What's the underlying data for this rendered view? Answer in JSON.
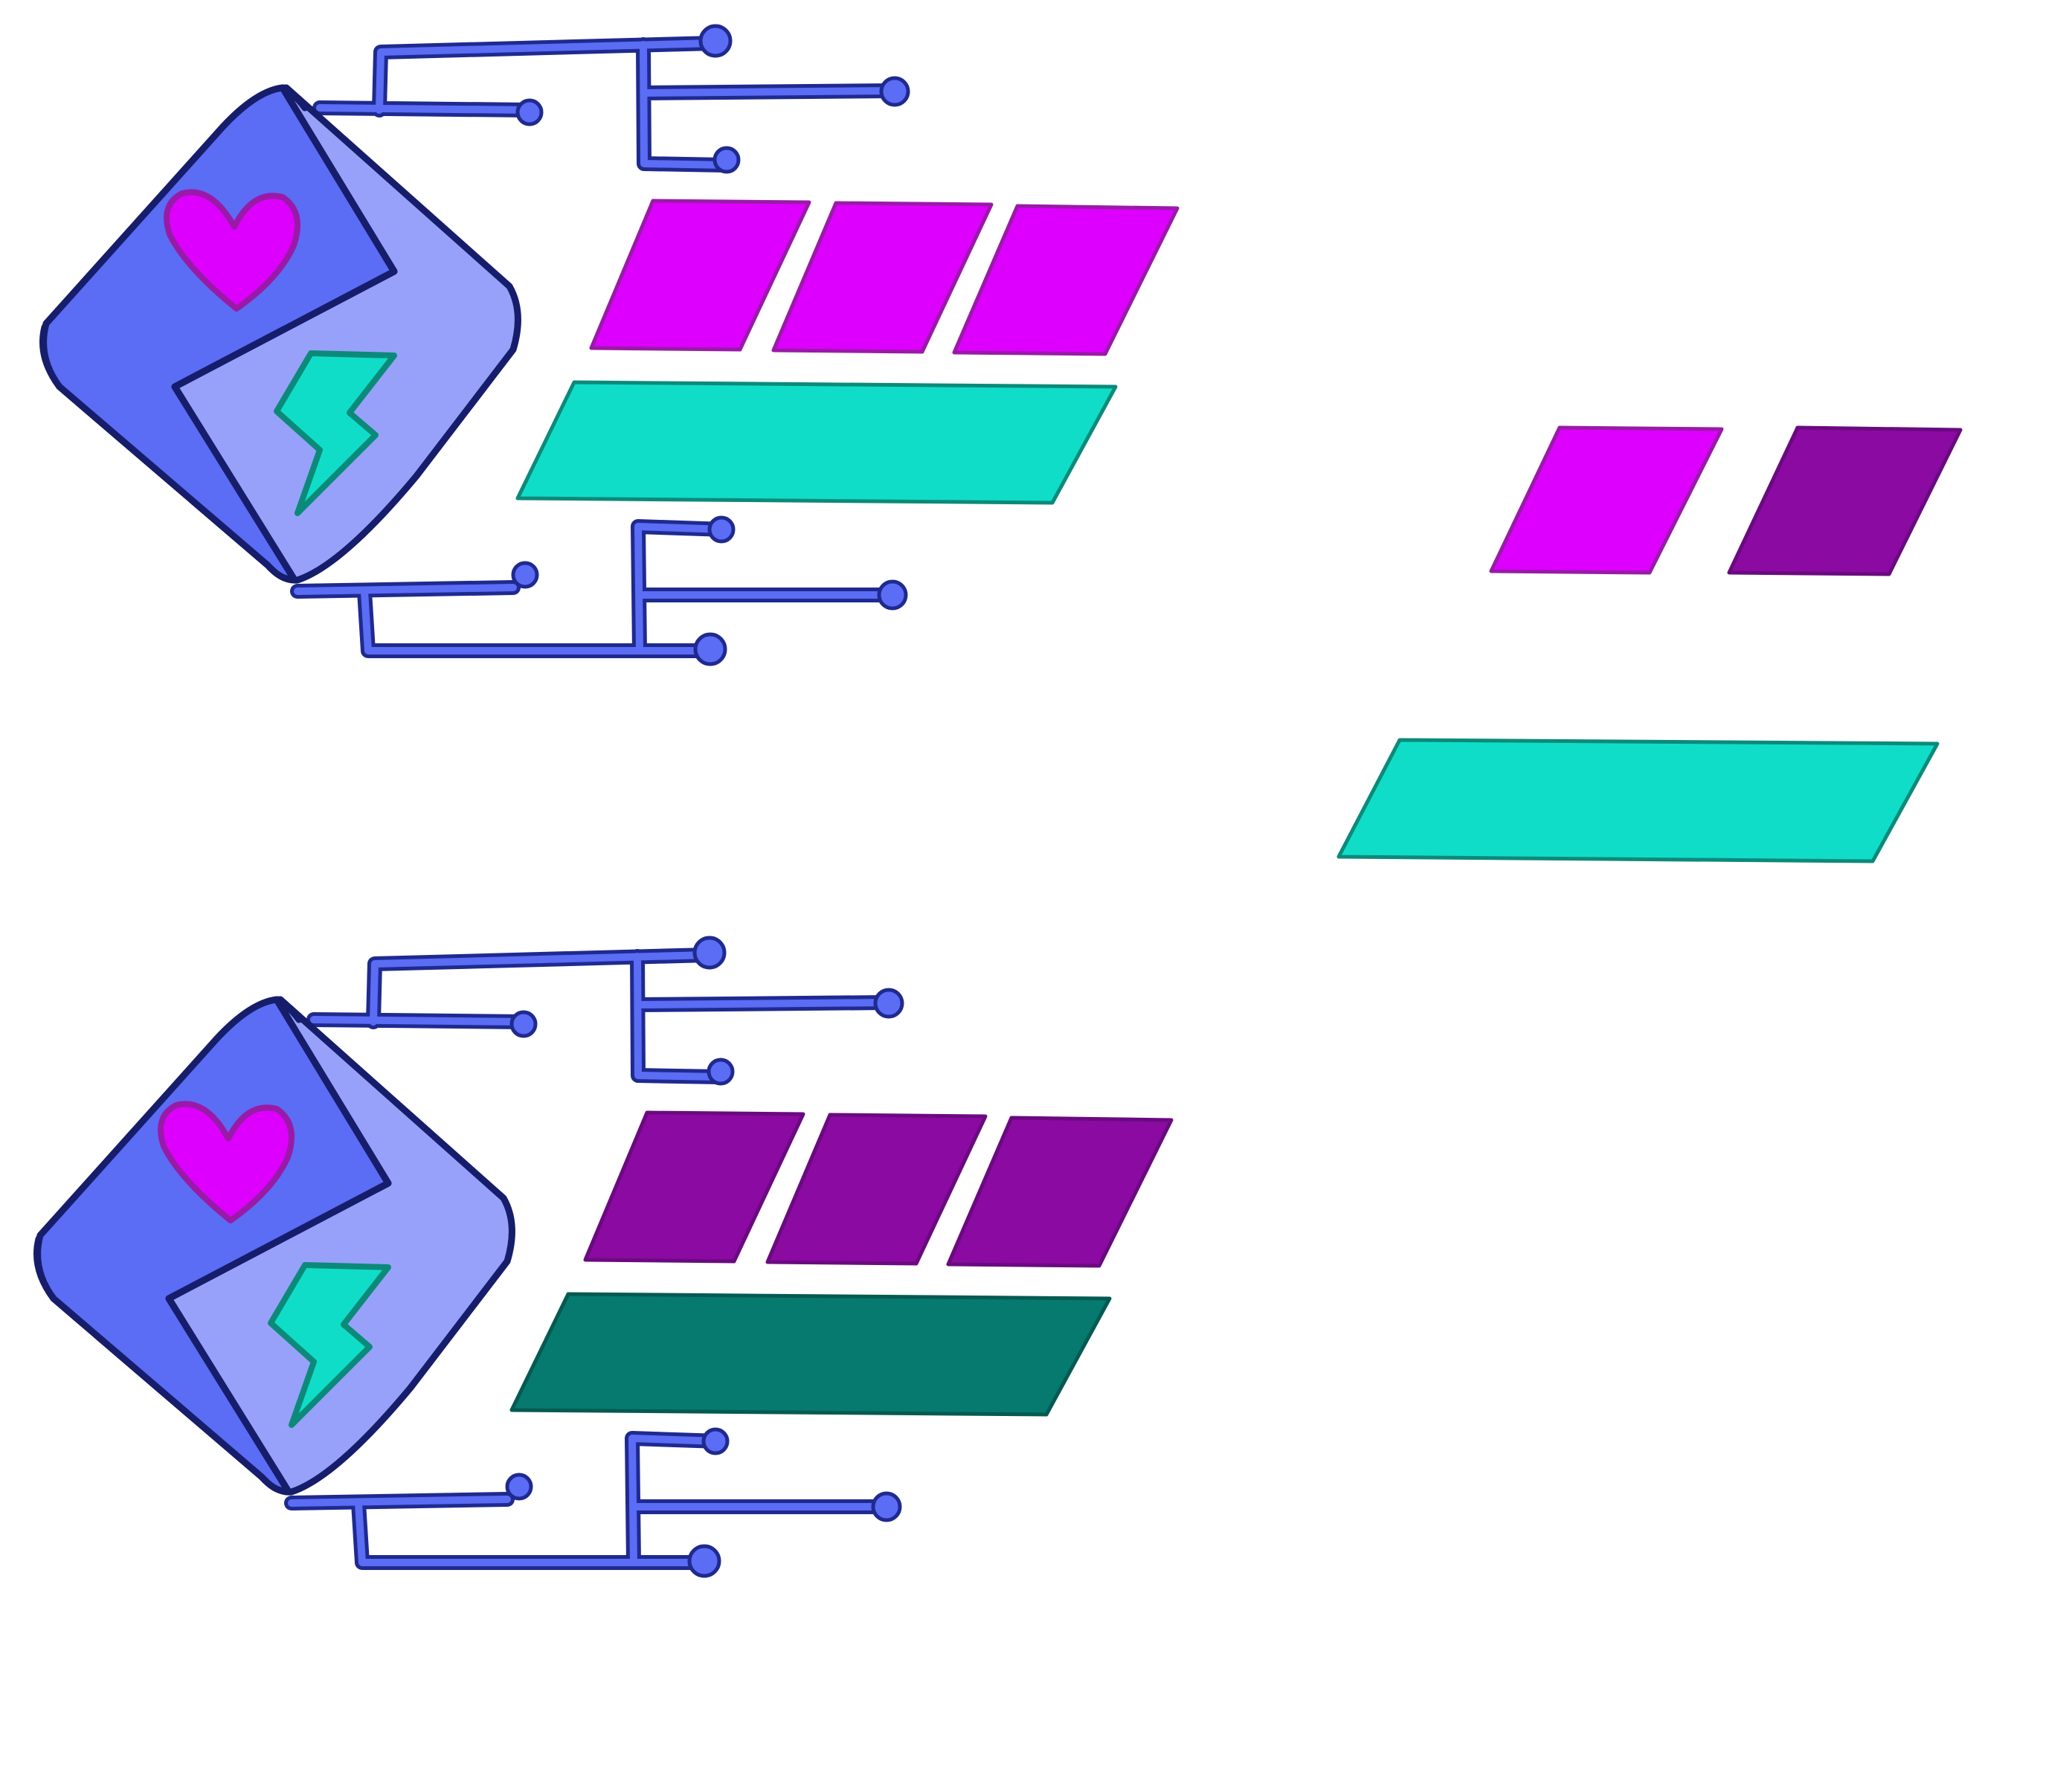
{
  "colors": {
    "background": "#ffffff",
    "cube_dark_face": "#5b6cf5",
    "cube_light_face": "#98a1fa",
    "cube_outline": "#161d6b",
    "circuit": "#5b6cf5",
    "circuit_outline": "#1f2a8f",
    "heart": "#dd00ff",
    "heart_outline": "#9a1aa8",
    "bolt": "#10ddc8",
    "bolt_outline": "#0b8a7a",
    "magenta_full": "#dd00ff",
    "magenta_empty": "#8b0aa1",
    "cyan_full": "#10ddc8",
    "cyan_empty": "#067a6e"
  },
  "player_hud": {
    "avatar_icon": "cube-heart-bolt-icon",
    "health_segments_max": 3,
    "health_segments_filled": 3,
    "energy_fill": 1.0
  },
  "enemy_hud": {
    "avatar_icon": "cube-heart-bolt-icon",
    "health_segments_max": 3,
    "health_segments_filled": 0,
    "energy_fill": 0.0
  },
  "status_card": {
    "health_segments_max": 2,
    "health_segments_filled": 1,
    "energy_fill": 1.0
  }
}
